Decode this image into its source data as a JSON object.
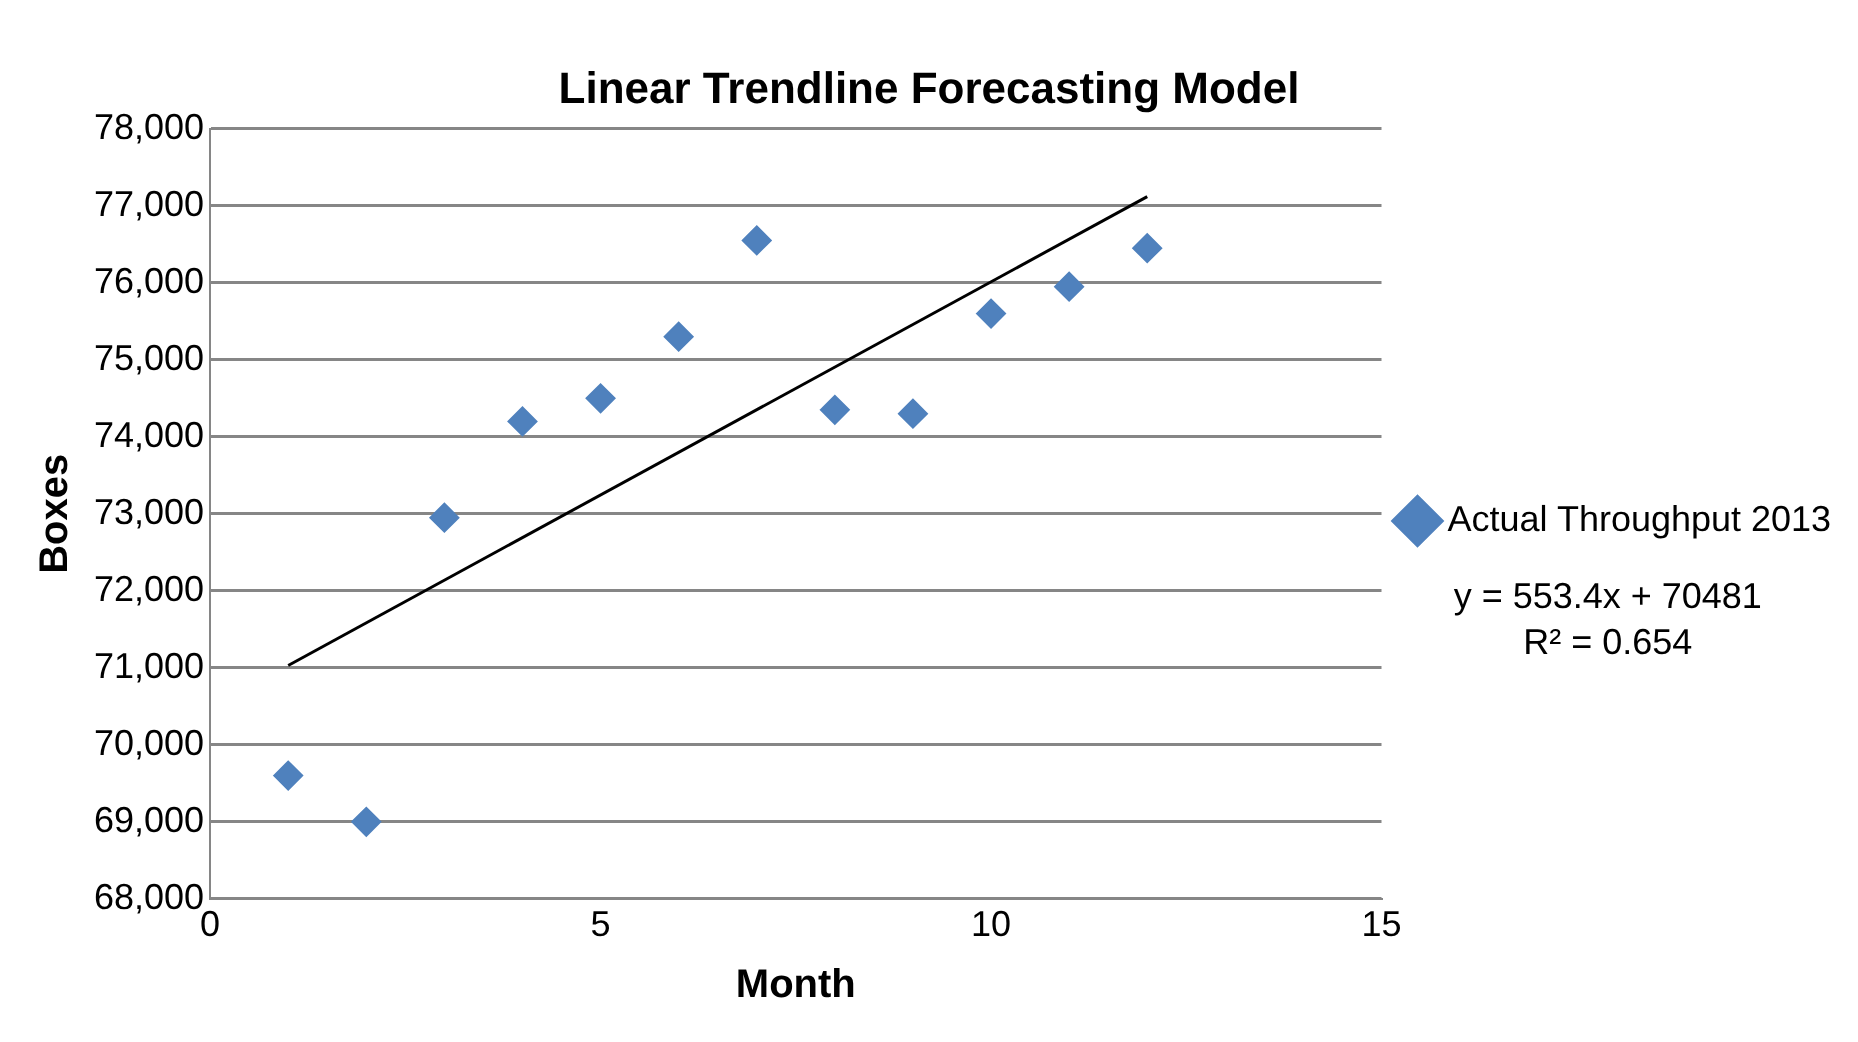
{
  "chart_data": {
    "type": "scatter",
    "title": "Linear Trendline Forecasting Model",
    "xlabel": "Month",
    "ylabel": "Boxes",
    "x": [
      1,
      2,
      3,
      4,
      5,
      6,
      7,
      8,
      9,
      10,
      11,
      12
    ],
    "series": [
      {
        "name": "Actual Throughput 2013",
        "type": "scatter",
        "color": "#4f81bd",
        "marker": "diamond",
        "values": [
          69600,
          69000,
          72950,
          74200,
          74500,
          75300,
          76550,
          74350,
          74300,
          75600,
          75950,
          76450
        ]
      },
      {
        "type": "line",
        "color": "#000000",
        "marker": "none",
        "line_style": "solid",
        "x": [
          1,
          12
        ],
        "values": [
          71030,
          77120
        ]
      }
    ],
    "xlim": [
      0,
      15
    ],
    "xticks": [
      0,
      5,
      10,
      15
    ],
    "ylim": [
      68000,
      78000
    ],
    "yticks": [
      {
        "value": 68000,
        "label": "68,000"
      },
      {
        "value": 69000,
        "label": "69,000"
      },
      {
        "value": 70000,
        "label": "70,000"
      },
      {
        "value": 71000,
        "label": "71,000"
      },
      {
        "value": 72000,
        "label": "72,000"
      },
      {
        "value": 73000,
        "label": "73,000"
      },
      {
        "value": 74000,
        "label": "74,000"
      },
      {
        "value": 75000,
        "label": "75,000"
      },
      {
        "value": 76000,
        "label": "76,000"
      },
      {
        "value": 77000,
        "label": "77,000"
      },
      {
        "value": 78000,
        "label": "78,000"
      }
    ],
    "grid": "y",
    "legend": "right",
    "annotations": [
      "y = 553.4x + 70481",
      "R² = 0.654"
    ]
  }
}
